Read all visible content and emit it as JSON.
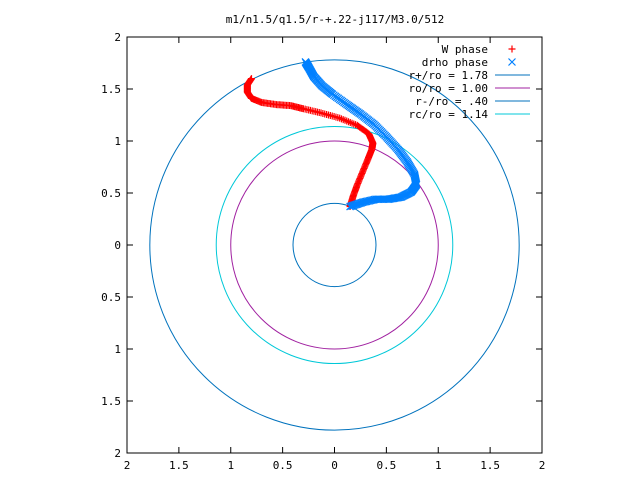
{
  "chart_data": {
    "type": "scatter",
    "title": "m1/n1.5/q1.5/r-+.22-j117/M3.0/512",
    "xlim": [
      -2,
      2
    ],
    "ylim": [
      -2,
      2
    ],
    "x_ticks": [
      -2,
      -1.5,
      -1,
      -0.5,
      0,
      0.5,
      1,
      1.5,
      2
    ],
    "x_tick_labels": [
      "2",
      "1.5",
      "1",
      "0.5",
      "0",
      "0.5",
      "1",
      "1.5",
      "2"
    ],
    "y_ticks": [
      2,
      1.5,
      1,
      0.5,
      0,
      -0.5,
      -1,
      -1.5,
      -2
    ],
    "y_tick_labels": [
      "2",
      "1.5",
      "1",
      "0.5",
      "0",
      "0.5",
      "1",
      "1.5",
      "2"
    ],
    "grid": false,
    "legend_position": "top-right",
    "series": [
      {
        "name": "W phase",
        "kind": "points",
        "marker": "+",
        "color": "#ff0000",
        "points": [
          [
            0.15,
            0.37
          ],
          [
            0.18,
            0.47
          ],
          [
            0.22,
            0.58
          ],
          [
            0.27,
            0.7
          ],
          [
            0.32,
            0.82
          ],
          [
            0.36,
            0.92
          ],
          [
            0.37,
            0.98
          ],
          [
            0.33,
            1.07
          ],
          [
            0.22,
            1.15
          ],
          [
            0.05,
            1.22
          ],
          [
            -0.13,
            1.27
          ],
          [
            -0.3,
            1.31
          ],
          [
            -0.42,
            1.34
          ],
          [
            -0.56,
            1.35
          ],
          [
            -0.7,
            1.37
          ],
          [
            -0.8,
            1.41
          ],
          [
            -0.84,
            1.47
          ],
          [
            -0.84,
            1.54
          ],
          [
            -0.8,
            1.6
          ]
        ]
      },
      {
        "name": "drho phase",
        "kind": "points",
        "marker": "x",
        "color": "#0080ff",
        "points": [
          [
            0.15,
            0.37
          ],
          [
            0.27,
            0.41
          ],
          [
            0.4,
            0.44
          ],
          [
            0.52,
            0.44
          ],
          [
            0.64,
            0.46
          ],
          [
            0.74,
            0.51
          ],
          [
            0.79,
            0.58
          ],
          [
            0.77,
            0.68
          ],
          [
            0.7,
            0.8
          ],
          [
            0.61,
            0.92
          ],
          [
            0.5,
            1.04
          ],
          [
            0.38,
            1.16
          ],
          [
            0.25,
            1.26
          ],
          [
            0.12,
            1.35
          ],
          [
            -0.02,
            1.45
          ],
          [
            -0.12,
            1.53
          ],
          [
            -0.2,
            1.62
          ],
          [
            -0.25,
            1.71
          ],
          [
            -0.28,
            1.76
          ]
        ]
      },
      {
        "name": "r+/ro = 1.78",
        "kind": "circle",
        "radius": 1.78,
        "color": "#0072bd"
      },
      {
        "name": "ro/ro = 1.00",
        "kind": "circle",
        "radius": 1.0,
        "color": "#a020a0"
      },
      {
        "name": "r-/ro = .40",
        "kind": "circle",
        "radius": 0.4,
        "color": "#0072bd"
      },
      {
        "name": "rc/ro = 1.14",
        "kind": "circle",
        "radius": 1.14,
        "color": "#00c8d8"
      }
    ]
  }
}
